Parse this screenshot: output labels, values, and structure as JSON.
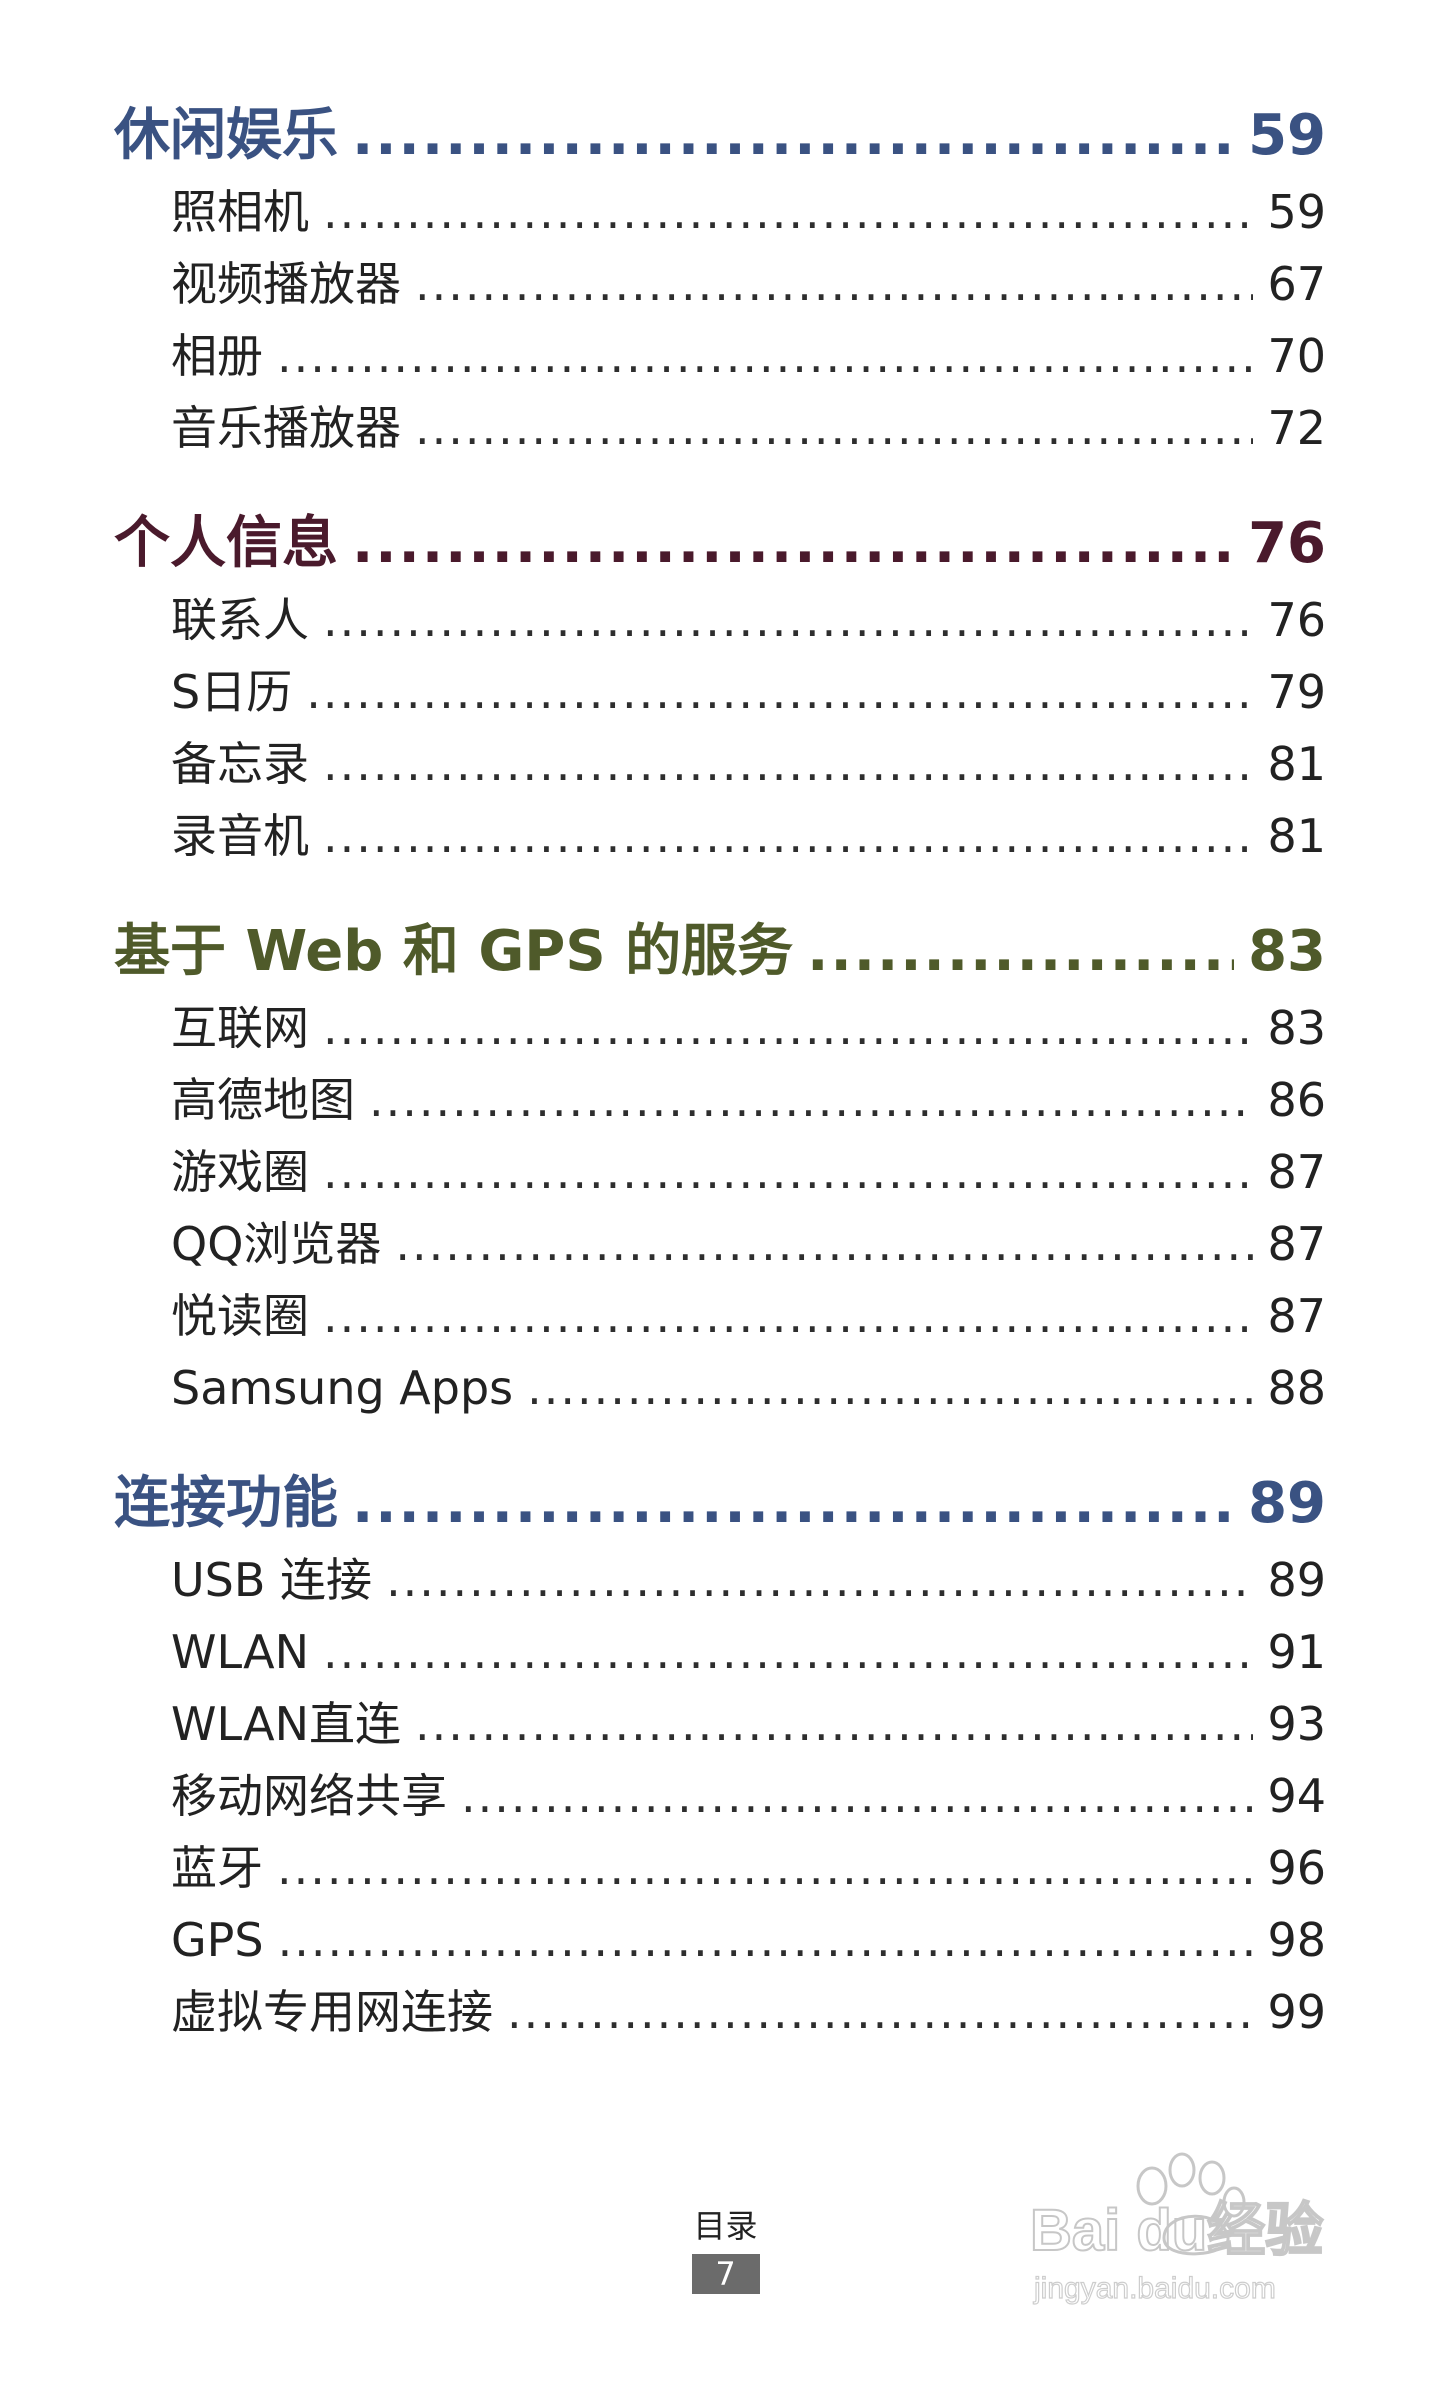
{
  "colors": {
    "entertainment": "#3a5282",
    "personal": "#4a1a2c",
    "web_gps": "#4f5a2a",
    "connectivity": "#3a5282",
    "page_badge": "#6b6b6b"
  },
  "sections": [
    {
      "title": "休闲娱乐",
      "page": "59",
      "items": [
        {
          "label": "照相机",
          "page": "59"
        },
        {
          "label": "视频播放器",
          "page": "67"
        },
        {
          "label": "相册",
          "page": "70"
        },
        {
          "label": "音乐播放器",
          "page": "72"
        }
      ]
    },
    {
      "title": "个人信息",
      "page": "76",
      "items": [
        {
          "label": "联系人",
          "page": "76"
        },
        {
          "label": "S日历",
          "page": "79"
        },
        {
          "label": "备忘录",
          "page": "81"
        },
        {
          "label": "录音机",
          "page": "81"
        }
      ]
    },
    {
      "title": "基于 Web 和 GPS 的服务",
      "page": "83",
      "items": [
        {
          "label": "互联网",
          "page": "83"
        },
        {
          "label": "高德地图",
          "page": "86"
        },
        {
          "label": "游戏圈",
          "page": "87"
        },
        {
          "label": "QQ浏览器",
          "page": "87"
        },
        {
          "label": "悦读圈",
          "page": "87"
        },
        {
          "label": "Samsung Apps",
          "page": "88"
        }
      ]
    },
    {
      "title": "连接功能",
      "page": "89",
      "items": [
        {
          "label": "USB 连接",
          "page": "89"
        },
        {
          "label": "WLAN",
          "page": "91"
        },
        {
          "label": "WLAN直连",
          "page": "93"
        },
        {
          "label": "移动网络共享",
          "page": "94"
        },
        {
          "label": "蓝牙",
          "page": "96"
        },
        {
          "label": "GPS",
          "page": "98"
        },
        {
          "label": "虚拟专用网连接",
          "page": "99"
        }
      ]
    }
  ],
  "footer": {
    "label": "目录",
    "page_number": "7"
  },
  "watermark": {
    "brand": "Baidu经验",
    "url": "jingyan.baidu.com",
    "icon": "paw-icon"
  }
}
